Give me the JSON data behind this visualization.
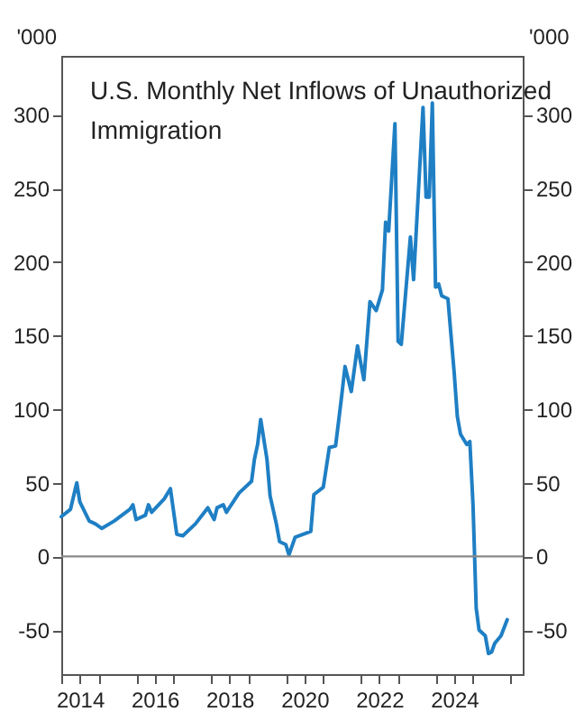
{
  "chart_data": {
    "type": "line",
    "title": "U.S. Monthly Net Inflows of Unauthorized Immigration",
    "ylabel": "'000",
    "y2label": "'000",
    "x": [
      "2014-01",
      "2014-04",
      "2014-06",
      "2014-07",
      "2014-10",
      "2014-12",
      "2015-02",
      "2015-06",
      "2015-11",
      "2015-12",
      "2016-01",
      "2016-04",
      "2016-05",
      "2016-06",
      "2016-10",
      "2016-12",
      "2017-02",
      "2017-04",
      "2017-08",
      "2017-12",
      "2018-02",
      "2018-03",
      "2018-05",
      "2018-06",
      "2018-10",
      "2019-02",
      "2019-03",
      "2019-04",
      "2019-05",
      "2019-07",
      "2019-08",
      "2019-10",
      "2019-11",
      "2020-01",
      "2020-02",
      "2020-04",
      "2020-09",
      "2020-10",
      "2021-01",
      "2021-03",
      "2021-05",
      "2021-07",
      "2021-08",
      "2021-10",
      "2021-12",
      "2022-02",
      "2022-04",
      "2022-06",
      "2022-08",
      "2022-09",
      "2022-10",
      "2022-12",
      "2023-01",
      "2023-02",
      "2023-05",
      "2023-06",
      "2023-09",
      "2023-10",
      "2023-11",
      "2023-12",
      "2024-01",
      "2024-02",
      "2024-03",
      "2024-05",
      "2024-07",
      "2024-08",
      "2024-09",
      "2024-11",
      "2024-12",
      "2025-01",
      "2025-02",
      "2025-03",
      "2025-05",
      "2025-06",
      "2025-07",
      "2025-08",
      "2025-10",
      "2025-12"
    ],
    "series": [
      {
        "color": "#1f7fc4",
        "values": [
          27,
          32,
          50,
          37,
          24,
          22,
          19,
          24,
          32,
          35,
          25,
          28,
          35,
          30,
          39,
          46,
          15,
          14,
          22,
          33,
          25,
          33,
          35,
          30,
          43,
          51,
          66,
          76,
          93,
          66,
          41,
          22,
          10,
          8,
          1,
          13,
          17,
          42,
          47,
          74,
          75,
          110,
          129,
          112,
          143,
          120,
          173,
          167,
          181,
          227,
          221,
          294,
          146,
          144,
          217,
          188,
          305,
          244,
          244,
          308,
          183,
          185,
          177,
          175,
          125,
          95,
          83,
          76,
          78,
          35,
          -35,
          -50,
          -54,
          -66,
          -65,
          -59,
          -54,
          -43
        ]
      }
    ],
    "xlim": [
      "2014-01",
      "2026-05"
    ],
    "xticks": [
      {
        "value": "2014-01",
        "label": null
      },
      {
        "value": "2014-07",
        "label": "2014"
      },
      {
        "value": "2015-01",
        "label": null
      },
      {
        "value": "2016-01",
        "label": null
      },
      {
        "value": "2016-07",
        "label": "2016"
      },
      {
        "value": "2017-01",
        "label": null
      },
      {
        "value": "2018-01",
        "label": null
      },
      {
        "value": "2018-07",
        "label": "2018"
      },
      {
        "value": "2019-01",
        "label": null
      },
      {
        "value": "2020-01",
        "label": null
      },
      {
        "value": "2020-07",
        "label": "2020"
      },
      {
        "value": "2021-01",
        "label": null
      },
      {
        "value": "2022-01",
        "label": null
      },
      {
        "value": "2022-07",
        "label": "2022"
      },
      {
        "value": "2023-01",
        "label": null
      },
      {
        "value": "2024-01",
        "label": null
      },
      {
        "value": "2024-07",
        "label": "2024"
      },
      {
        "value": "2025-01",
        "label": null
      },
      {
        "value": "2026-01",
        "label": null
      }
    ],
    "ylim": [
      -80,
      340
    ],
    "yticks": [
      -50,
      0,
      50,
      100,
      150,
      200,
      250,
      300
    ],
    "y2lim": [
      -80,
      340
    ],
    "y2ticks": [
      -50,
      0,
      50,
      100,
      150,
      200,
      250,
      300
    ],
    "ref_lines": [
      {
        "axis": "y",
        "value": 0,
        "color": "#888888"
      }
    ],
    "grid": false,
    "marker": "none",
    "line_style": "solid"
  }
}
